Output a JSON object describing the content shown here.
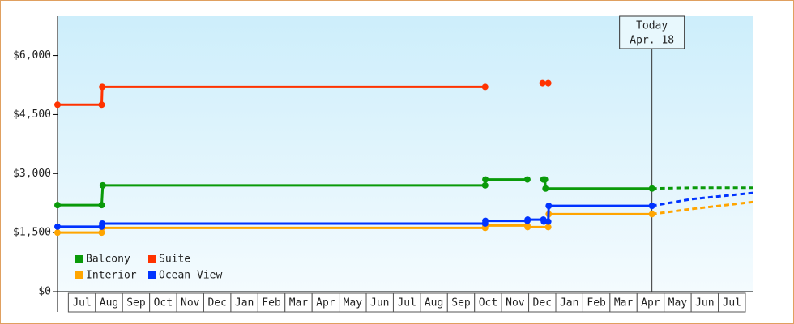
{
  "chart_data": {
    "type": "line",
    "xlim": [
      -0.4,
      25.3
    ],
    "ylim": [
      0,
      7000
    ],
    "xticks": [
      {
        "value": 0.5,
        "label": "Jul"
      },
      {
        "value": 1.5,
        "label": "Aug"
      },
      {
        "value": 2.5,
        "label": "Sep"
      },
      {
        "value": 3.5,
        "label": "Oct"
      },
      {
        "value": 4.5,
        "label": "Nov"
      },
      {
        "value": 5.5,
        "label": "Dec"
      },
      {
        "value": 6.5,
        "label": "Jan"
      },
      {
        "value": 7.5,
        "label": "Feb"
      },
      {
        "value": 8.5,
        "label": "Mar"
      },
      {
        "value": 9.5,
        "label": "Apr"
      },
      {
        "value": 10.5,
        "label": "May"
      },
      {
        "value": 11.5,
        "label": "Jun"
      },
      {
        "value": 12.5,
        "label": "Jul"
      },
      {
        "value": 13.5,
        "label": "Aug"
      },
      {
        "value": 14.5,
        "label": "Sep"
      },
      {
        "value": 15.5,
        "label": "Oct"
      },
      {
        "value": 16.5,
        "label": "Nov"
      },
      {
        "value": 17.5,
        "label": "Dec"
      },
      {
        "value": 18.5,
        "label": "Jan"
      },
      {
        "value": 19.5,
        "label": "Feb"
      },
      {
        "value": 20.5,
        "label": "Mar"
      },
      {
        "value": 21.5,
        "label": "Apr"
      },
      {
        "value": 22.5,
        "label": "May"
      },
      {
        "value": 23.5,
        "label": "Jun"
      },
      {
        "value": 24.5,
        "label": "Jul"
      }
    ],
    "yticks": [
      {
        "value": 0,
        "label": "$0"
      },
      {
        "value": 1500,
        "label": "$1,500"
      },
      {
        "value": 3000,
        "label": "$3,000"
      },
      {
        "value": 4500,
        "label": "$4,500"
      },
      {
        "value": 6000,
        "label": "$6,000"
      }
    ],
    "grid": false,
    "legend": "lower left",
    "annotation": {
      "text": [
        "Today",
        "Apr. 18"
      ],
      "x": 21.55
    },
    "series": [
      {
        "name": "Balcony",
        "color": "#0a9a0a",
        "x": [
          -0.4,
          1.23,
          1.27,
          15.39,
          15.4,
          16.95,
          17.3,
          17.54,
          17.6,
          17.62,
          21.55
        ],
        "values": [
          2200,
          2200,
          2700,
          2700,
          2850,
          2850,
          null,
          2850,
          2850,
          2620,
          2620
        ],
        "forecast_x": [
          21.55,
          23,
          25.3
        ],
        "forecast_values": [
          2620,
          2640,
          2640
        ]
      },
      {
        "name": "Suite",
        "color": "#ff3300",
        "x": [
          -0.4,
          1.23,
          1.25,
          15.39,
          16,
          17.51,
          17.72
        ],
        "values": [
          4750,
          4750,
          5200,
          5200,
          null,
          5300,
          5300
        ]
      },
      {
        "name": "Interior",
        "color": "#ffa500",
        "x": [
          -0.4,
          1.23,
          1.25,
          15.39,
          15.4,
          16.95,
          16.96,
          17.72,
          17.74,
          21.55
        ],
        "values": [
          1500,
          1500,
          1620,
          1620,
          1680,
          1680,
          1640,
          1640,
          1970,
          1970
        ],
        "forecast_x": [
          21.55,
          23,
          25.3
        ],
        "forecast_values": [
          1970,
          2100,
          2280
        ]
      },
      {
        "name": "Ocean View",
        "color": "#0033ff",
        "x": [
          -0.4,
          1.23,
          1.25,
          15.39,
          15.4,
          16.95,
          16.96,
          17.54,
          17.56,
          17.72,
          17.74,
          21.55
        ],
        "values": [
          1650,
          1650,
          1730,
          1730,
          1800,
          1800,
          1830,
          1830,
          1780,
          1780,
          2180,
          2180
        ],
        "forecast_x": [
          21.55,
          23,
          25.3
        ],
        "forecast_values": [
          2180,
          2350,
          2510
        ]
      }
    ]
  }
}
